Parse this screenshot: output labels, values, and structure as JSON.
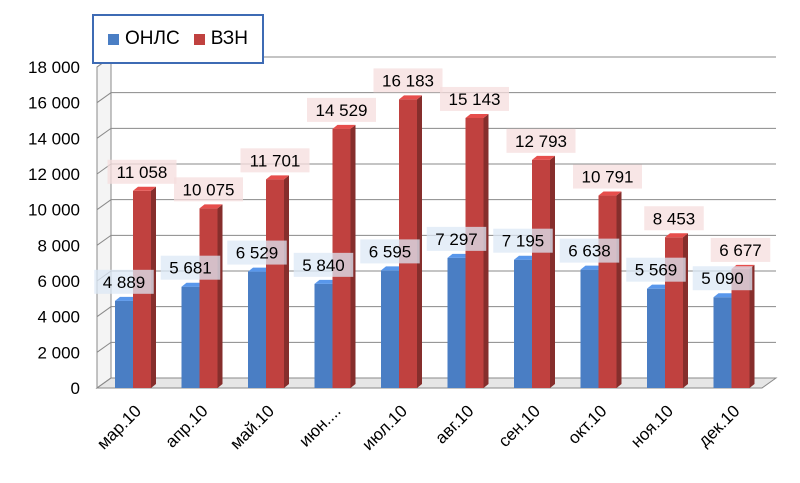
{
  "chart_data": {
    "type": "bar",
    "categories": [
      "мар.10",
      "апр.10",
      "май.10",
      "июн....",
      "июл.10",
      "авг.10",
      "сен.10",
      "окт.10",
      "ноя.10",
      "дек.10"
    ],
    "series": [
      {
        "name": "ОНЛС",
        "color": "#4a7ec4",
        "values": [
          4889,
          5681,
          6529,
          5840,
          6595,
          7297,
          7195,
          6638,
          5569,
          5090
        ],
        "labels": [
          "4 889",
          "5 681",
          "6 529",
          "5 840",
          "6 595",
          "7 297",
          "7 195",
          "6 638",
          "5 569",
          "5 090"
        ]
      },
      {
        "name": "ВЗН",
        "color": "#c0413f",
        "values": [
          11058,
          10075,
          11701,
          14529,
          16183,
          15143,
          12793,
          10791,
          8453,
          6677
        ],
        "labels": [
          "11 058",
          "10 075",
          "11 701",
          "14 529",
          "16 183",
          "15 143",
          "12 793",
          "10 791",
          "8 453",
          "6 677"
        ]
      }
    ],
    "yticks": [
      "0",
      "2 000",
      "4 000",
      "6 000",
      "8 000",
      "10 000",
      "12 000",
      "14 000",
      "16 000",
      "18 000"
    ],
    "ylim": [
      0,
      18000
    ],
    "grid": true,
    "legend_position": "top-left",
    "title": "",
    "xlabel": "",
    "ylabel": ""
  }
}
